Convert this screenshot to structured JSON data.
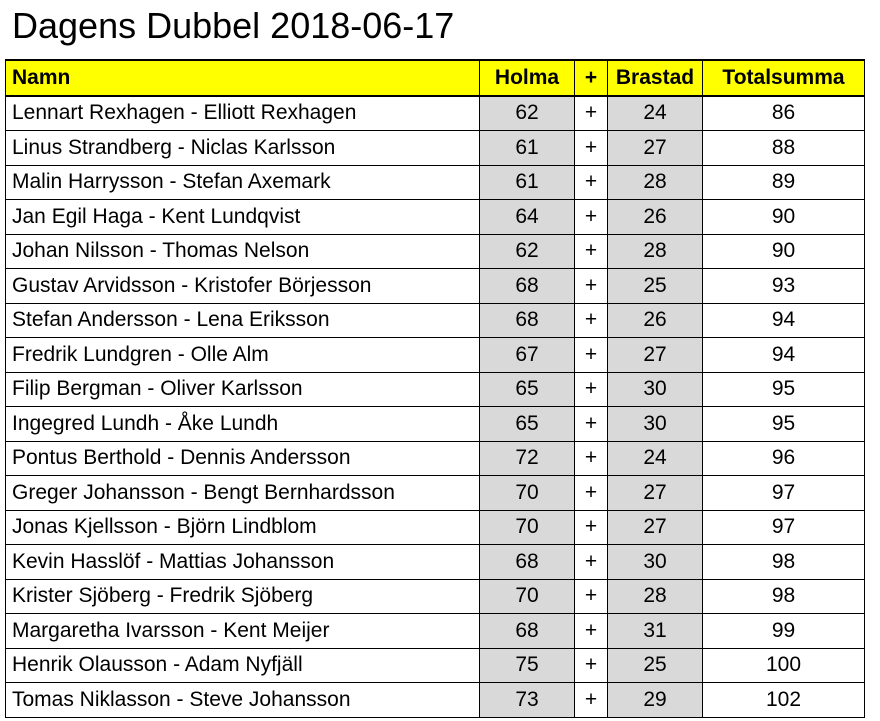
{
  "title": "Dagens Dubbel 2018-06-17",
  "headers": {
    "name": "Namn",
    "holma": "Holma",
    "plus": "+",
    "brastad": "Brastad",
    "total": "Totalsumma"
  },
  "rows": [
    {
      "name": "Lennart Rexhagen - Elliott Rexhagen",
      "holma": "62",
      "plus": "+",
      "brastad": "24",
      "total": "86"
    },
    {
      "name": "Linus Strandberg - Niclas Karlsson",
      "holma": "61",
      "plus": "+",
      "brastad": "27",
      "total": "88"
    },
    {
      "name": "Malin Harrysson - Stefan Axemark",
      "holma": "61",
      "plus": "+",
      "brastad": "28",
      "total": "89"
    },
    {
      "name": "Jan Egil Haga - Kent Lundqvist",
      "holma": "64",
      "plus": "+",
      "brastad": "26",
      "total": "90"
    },
    {
      "name": "Johan Nilsson - Thomas Nelson",
      "holma": "62",
      "plus": "+",
      "brastad": "28",
      "total": "90"
    },
    {
      "name": "Gustav Arvidsson - Kristofer Börjesson",
      "holma": "68",
      "plus": "+",
      "brastad": "25",
      "total": "93"
    },
    {
      "name": "Stefan Andersson - Lena Eriksson",
      "holma": "68",
      "plus": "+",
      "brastad": "26",
      "total": "94"
    },
    {
      "name": "Fredrik Lundgren - Olle Alm",
      "holma": "67",
      "plus": "+",
      "brastad": "27",
      "total": "94"
    },
    {
      "name": "Filip Bergman - Oliver Karlsson",
      "holma": "65",
      "plus": "+",
      "brastad": "30",
      "total": "95"
    },
    {
      "name": "Ingegred Lundh - Åke Lundh",
      "holma": "65",
      "plus": "+",
      "brastad": "30",
      "total": "95"
    },
    {
      "name": "Pontus Berthold - Dennis Andersson",
      "holma": "72",
      "plus": "+",
      "brastad": "24",
      "total": "96"
    },
    {
      "name": "Greger Johansson - Bengt Bernhardsson",
      "holma": "70",
      "plus": "+",
      "brastad": "27",
      "total": "97"
    },
    {
      "name": "Jonas Kjellsson - Björn Lindblom",
      "holma": "70",
      "plus": "+",
      "brastad": "27",
      "total": "97"
    },
    {
      "name": "Kevin Hasslöf - Mattias Johansson",
      "holma": "68",
      "plus": "+",
      "brastad": "30",
      "total": "98"
    },
    {
      "name": "Krister Sjöberg - Fredrik Sjöberg",
      "holma": "70",
      "plus": "+",
      "brastad": "28",
      "total": "98"
    },
    {
      "name": "Margaretha Ivarsson - Kent Meijer",
      "holma": "68",
      "plus": "+",
      "brastad": "31",
      "total": "99"
    },
    {
      "name": "Henrik Olausson - Adam Nyfjäll",
      "holma": "75",
      "plus": "+",
      "brastad": "25",
      "total": "100"
    },
    {
      "name": "Tomas Niklasson - Steve Johansson",
      "holma": "73",
      "plus": "+",
      "brastad": "29",
      "total": "102"
    }
  ]
}
